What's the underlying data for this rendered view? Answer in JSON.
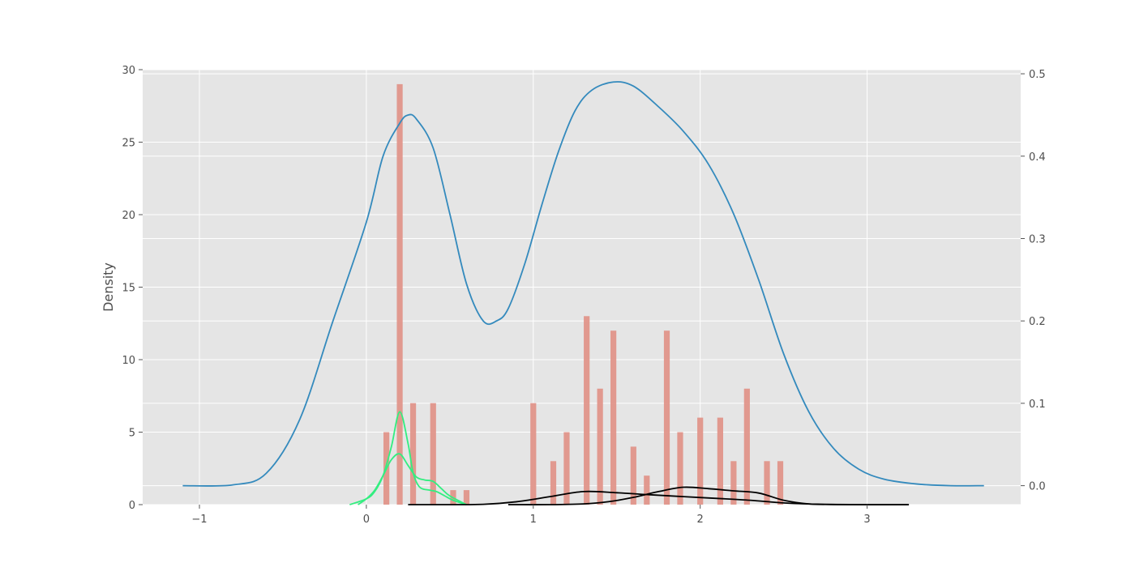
{
  "chart_data": {
    "type": "bar",
    "xlabel": "",
    "ylabel": "Density",
    "xlim": [
      -1.34,
      3.92
    ],
    "ylim_left": [
      0,
      30
    ],
    "ylim_right": [
      -0.023,
      0.505
    ],
    "x_ticks": [
      -1,
      0,
      1,
      2,
      3
    ],
    "x_tick_labels": [
      "−1",
      "0",
      "1",
      "2",
      "3"
    ],
    "y_left_ticks": [
      0,
      5,
      10,
      15,
      20,
      25,
      30
    ],
    "y_left_tick_labels": [
      "0",
      "5",
      "10",
      "15",
      "20",
      "25",
      "30"
    ],
    "y_right_ticks": [
      0.0,
      0.1,
      0.2,
      0.3,
      0.4,
      0.5
    ],
    "y_right_tick_labels": [
      "0.0",
      "0.1",
      "0.2",
      "0.3",
      "0.4",
      "0.5"
    ],
    "grid": true,
    "background": "#e5e5e5",
    "histogram": {
      "axis": "left",
      "color": "#e0958a",
      "bar_width": 0.035,
      "x": [
        0.12,
        0.2,
        0.28,
        0.4,
        0.52,
        0.6,
        1.0,
        1.12,
        1.2,
        1.32,
        1.4,
        1.48,
        1.6,
        1.68,
        1.8,
        1.88,
        2.0,
        2.12,
        2.2,
        2.28,
        2.4,
        2.48
      ],
      "values": [
        5,
        29,
        7,
        7,
        1,
        1,
        7,
        3,
        5,
        13,
        8,
        12,
        4,
        2,
        12,
        5,
        6,
        6,
        3,
        8,
        3,
        3
      ]
    },
    "series": [
      {
        "axis": "right",
        "color": "#348abd",
        "x": [
          -1.1,
          -0.8,
          -0.6,
          -0.4,
          -0.2,
          0.0,
          0.1,
          0.2,
          0.25,
          0.3,
          0.4,
          0.5,
          0.6,
          0.7,
          0.78,
          0.85,
          0.95,
          1.05,
          1.15,
          1.25,
          1.35,
          1.48,
          1.6,
          1.75,
          1.9,
          2.05,
          2.2,
          2.35,
          2.5,
          2.65,
          2.8,
          2.95,
          3.1,
          3.3,
          3.5,
          3.7
        ],
        "y": [
          0.0,
          0.001,
          0.015,
          0.08,
          0.2,
          0.32,
          0.4,
          0.44,
          0.45,
          0.445,
          0.41,
          0.33,
          0.245,
          0.2,
          0.2,
          0.215,
          0.27,
          0.34,
          0.405,
          0.455,
          0.48,
          0.49,
          0.485,
          0.46,
          0.43,
          0.39,
          0.33,
          0.25,
          0.16,
          0.09,
          0.045,
          0.02,
          0.008,
          0.002,
          0.0,
          0.0
        ]
      },
      {
        "axis": "left",
        "color": "#33ee80",
        "x": [
          -0.1,
          0.0,
          0.05,
          0.1,
          0.15,
          0.2,
          0.25,
          0.28,
          0.32,
          0.38,
          0.42,
          0.47,
          0.52,
          0.6
        ],
        "y": [
          0.0,
          0.4,
          0.9,
          2.0,
          4.0,
          6.4,
          4.2,
          2.2,
          1.2,
          1.0,
          0.9,
          0.6,
          0.3,
          0.0
        ]
      },
      {
        "axis": "left",
        "color": "#33ee80",
        "x": [
          -0.05,
          0.0,
          0.05,
          0.1,
          0.15,
          0.2,
          0.25,
          0.3,
          0.35,
          0.4,
          0.45,
          0.5,
          0.6
        ],
        "y": [
          0.0,
          0.4,
          1.0,
          2.0,
          3.1,
          3.5,
          2.7,
          1.9,
          1.7,
          1.6,
          1.1,
          0.6,
          0.0
        ]
      },
      {
        "axis": "left",
        "color": "#000000",
        "x": [
          0.25,
          0.5,
          0.7,
          0.9,
          1.1,
          1.3,
          1.5,
          1.7,
          1.9,
          2.1,
          2.3,
          2.5,
          2.7,
          2.9,
          3.25
        ],
        "y": [
          0.0,
          0.0,
          0.02,
          0.2,
          0.55,
          0.9,
          0.82,
          0.68,
          0.55,
          0.43,
          0.3,
          0.12,
          0.03,
          0.0,
          0.0
        ]
      },
      {
        "axis": "left",
        "color": "#000000",
        "x": [
          0.85,
          1.1,
          1.3,
          1.45,
          1.6,
          1.75,
          1.9,
          2.05,
          2.2,
          2.35,
          2.5,
          2.65,
          2.8,
          3.0,
          3.25
        ],
        "y": [
          0.0,
          0.0,
          0.05,
          0.2,
          0.5,
          0.9,
          1.2,
          1.1,
          0.95,
          0.8,
          0.3,
          0.05,
          0.01,
          0.0,
          0.0
        ]
      }
    ]
  }
}
